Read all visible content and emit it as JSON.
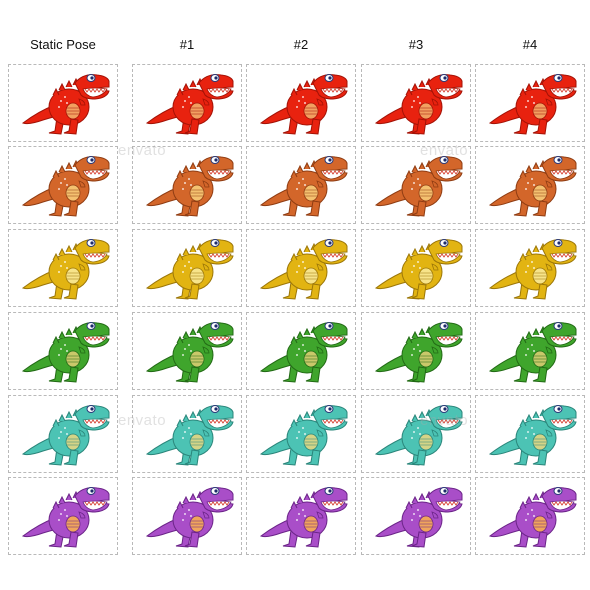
{
  "columns": [
    "Static Pose",
    "#1",
    "#2",
    "#3",
    "#4"
  ],
  "rows": [
    {
      "color": "red",
      "body": "#e8220f",
      "belly": "#f2a060",
      "shade": "#a31206"
    },
    {
      "color": "orange",
      "body": "#d3662a",
      "belly": "#f4c170",
      "shade": "#8f3c12"
    },
    {
      "color": "yellow",
      "body": "#e2b412",
      "belly": "#f7e48a",
      "shade": "#9b7608"
    },
    {
      "color": "green",
      "body": "#3fa52c",
      "belly": "#c9c86a",
      "shade": "#226a15"
    },
    {
      "color": "teal",
      "body": "#4cc3b4",
      "belly": "#d4d487",
      "shade": "#2a857a"
    },
    {
      "color": "purple",
      "body": "#a94ec8",
      "belly": "#f0a55c",
      "shade": "#6b2488"
    }
  ],
  "watermark": "envato"
}
